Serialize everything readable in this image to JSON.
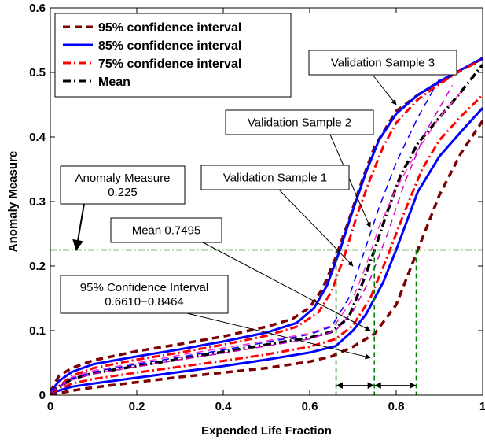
{
  "chart_data": {
    "type": "line",
    "xlabel": "Expended Life Fraction",
    "ylabel": "Anomaly Measure",
    "xlim": [
      0,
      1
    ],
    "ylim": [
      0,
      0.6
    ],
    "x_ticks": [
      "0",
      "0.2",
      "0.4",
      "0.6",
      "0.8",
      "1"
    ],
    "y_ticks": [
      "0",
      "0.1",
      "0.2",
      "0.3",
      "0.4",
      "0.5",
      "0.6"
    ],
    "grid": false,
    "legend_position": "top-left",
    "legend": [
      {
        "label": "95% confidence interval",
        "color": "#7f0000",
        "style": "dashed"
      },
      {
        "label": "85% confidence interval",
        "color": "#0000ff",
        "style": "solid"
      },
      {
        "label": "75% confidence interval",
        "color": "#ff0000",
        "style": "dashdot"
      },
      {
        "label": "Mean",
        "color": "#000000",
        "style": "dashdot"
      }
    ],
    "series": [
      {
        "name": "95% confidence interval",
        "color": "#7f0000",
        "style": "dashed",
        "width": 3.5,
        "x": [
          0,
          0.02,
          0.05,
          0.1,
          0.2,
          0.3,
          0.4,
          0.5,
          0.56,
          0.6,
          0.63,
          0.66,
          0.69,
          0.72,
          0.75,
          0.8,
          0.85,
          0.9,
          0.95,
          1
        ],
        "y": [
          0.005,
          0.03,
          0.042,
          0.054,
          0.068,
          0.079,
          0.091,
          0.106,
          0.118,
          0.136,
          0.165,
          0.213,
          0.27,
          0.33,
          0.385,
          0.44,
          0.465,
          0.485,
          0.503,
          0.522
        ]
      },
      {
        "name": "",
        "color": "#7f0000",
        "style": "dashed",
        "width": 3.5,
        "x": [
          0,
          0.05,
          0.1,
          0.2,
          0.3,
          0.4,
          0.5,
          0.6,
          0.65,
          0.7,
          0.75,
          0.8,
          0.85,
          0.9,
          0.95,
          1
        ],
        "y": [
          0,
          0.007,
          0.012,
          0.02,
          0.028,
          0.035,
          0.042,
          0.052,
          0.06,
          0.075,
          0.095,
          0.14,
          0.225,
          0.31,
          0.375,
          0.425
        ]
      },
      {
        "name": "85% confidence interval",
        "color": "#0000ff",
        "style": "solid",
        "width": 3,
        "x": [
          0,
          0.02,
          0.05,
          0.1,
          0.2,
          0.3,
          0.4,
          0.5,
          0.57,
          0.61,
          0.64,
          0.67,
          0.7,
          0.73,
          0.76,
          0.8,
          0.85,
          0.9,
          0.95,
          1
        ],
        "y": [
          0.004,
          0.022,
          0.036,
          0.048,
          0.06,
          0.071,
          0.083,
          0.097,
          0.112,
          0.135,
          0.17,
          0.225,
          0.287,
          0.345,
          0.395,
          0.436,
          0.465,
          0.486,
          0.504,
          0.522
        ]
      },
      {
        "name": "",
        "color": "#0000ff",
        "style": "solid",
        "width": 3,
        "x": [
          0,
          0.05,
          0.1,
          0.2,
          0.3,
          0.4,
          0.5,
          0.6,
          0.66,
          0.7,
          0.73,
          0.77,
          0.8,
          0.85,
          0.9,
          0.95,
          1
        ],
        "y": [
          0.003,
          0.013,
          0.018,
          0.027,
          0.036,
          0.045,
          0.055,
          0.066,
          0.076,
          0.1,
          0.125,
          0.175,
          0.225,
          0.315,
          0.37,
          0.408,
          0.445
        ]
      },
      {
        "name": "75% confidence interval",
        "color": "#ff0000",
        "style": "dashdot",
        "width": 3,
        "x": [
          0,
          0.05,
          0.1,
          0.2,
          0.3,
          0.4,
          0.5,
          0.57,
          0.62,
          0.65,
          0.68,
          0.71,
          0.74,
          0.77,
          0.8,
          0.85,
          0.9,
          0.95,
          1
        ],
        "y": [
          0.003,
          0.03,
          0.042,
          0.055,
          0.066,
          0.078,
          0.092,
          0.106,
          0.128,
          0.16,
          0.215,
          0.28,
          0.335,
          0.385,
          0.422,
          0.458,
          0.482,
          0.503,
          0.52
        ]
      },
      {
        "name": "",
        "color": "#ff0000",
        "style": "dashdot",
        "width": 3,
        "x": [
          0,
          0.05,
          0.1,
          0.2,
          0.3,
          0.4,
          0.5,
          0.6,
          0.66,
          0.7,
          0.74,
          0.78,
          0.82,
          0.86,
          0.9,
          0.95,
          1
        ],
        "y": [
          0.003,
          0.018,
          0.025,
          0.035,
          0.044,
          0.053,
          0.063,
          0.075,
          0.087,
          0.108,
          0.15,
          0.215,
          0.285,
          0.35,
          0.395,
          0.432,
          0.465
        ]
      },
      {
        "name": "Mean",
        "color": "#000000",
        "style": "dashdot",
        "width": 3.5,
        "x": [
          0,
          0.05,
          0.1,
          0.2,
          0.3,
          0.4,
          0.5,
          0.6,
          0.65,
          0.69,
          0.72,
          0.75,
          0.78,
          0.81,
          0.85,
          0.9,
          0.95,
          1
        ],
        "y": [
          0.004,
          0.025,
          0.034,
          0.045,
          0.056,
          0.067,
          0.078,
          0.089,
          0.098,
          0.12,
          0.17,
          0.225,
          0.285,
          0.34,
          0.39,
          0.43,
          0.47,
          0.512
        ]
      },
      {
        "name": "",
        "color": "#ff33cc",
        "style": "dashed",
        "width": 1.5,
        "x": [
          0,
          0.05,
          0.1,
          0.2,
          0.3,
          0.4,
          0.5,
          0.6,
          0.66,
          0.7,
          0.73,
          0.76,
          0.8,
          0.85,
          0.9,
          0.95
        ],
        "y": [
          0.004,
          0.028,
          0.038,
          0.05,
          0.062,
          0.073,
          0.084,
          0.096,
          0.11,
          0.15,
          0.2,
          0.26,
          0.32,
          0.38,
          0.43,
          0.47
        ]
      },
      {
        "name": "",
        "color": "#0000ff",
        "style": "dashed",
        "width": 1.5,
        "x": [
          0,
          0.05,
          0.1,
          0.2,
          0.3,
          0.4,
          0.5,
          0.6,
          0.65,
          0.69,
          0.72,
          0.76,
          0.8,
          0.85,
          0.9
        ],
        "y": [
          0.004,
          0.026,
          0.036,
          0.048,
          0.059,
          0.07,
          0.082,
          0.094,
          0.106,
          0.15,
          0.21,
          0.29,
          0.36,
          0.43,
          0.49
        ]
      },
      {
        "name": "",
        "color": "#cc00cc",
        "style": "dashed",
        "width": 1.5,
        "x": [
          0,
          0.05,
          0.1,
          0.2,
          0.3,
          0.4,
          0.5,
          0.6,
          0.66,
          0.7,
          0.74,
          0.78,
          0.82,
          0.87,
          0.93
        ],
        "y": [
          0.004,
          0.024,
          0.033,
          0.044,
          0.055,
          0.065,
          0.076,
          0.087,
          0.1,
          0.13,
          0.18,
          0.25,
          0.33,
          0.41,
          0.48
        ]
      }
    ],
    "reference_lines": {
      "horizontal_y": 0.225,
      "vertical_x": [
        0.661,
        0.7495,
        0.8464
      ],
      "color": "#008000"
    },
    "annotations": [
      {
        "id": "vs3",
        "lines": [
          "Validation Sample 3"
        ],
        "target": [
          0.8,
          0.45
        ]
      },
      {
        "id": "vs2",
        "lines": [
          "Validation Sample 2"
        ],
        "target": [
          0.74,
          0.26
        ]
      },
      {
        "id": "vs1",
        "lines": [
          "Validation Sample 1"
        ],
        "target": [
          0.7,
          0.2
        ]
      },
      {
        "id": "am",
        "lines": [
          "Anomaly Measure",
          "0.225"
        ],
        "target": [
          0.06,
          0.225
        ]
      },
      {
        "id": "mean",
        "lines": [
          "Mean 0.7495"
        ],
        "target": [
          0.74,
          0.1
        ]
      },
      {
        "id": "ci",
        "lines": [
          "95% Confidence Interval",
          "0.6610−0.8464"
        ],
        "target": [
          0.74,
          0.058
        ]
      }
    ]
  }
}
